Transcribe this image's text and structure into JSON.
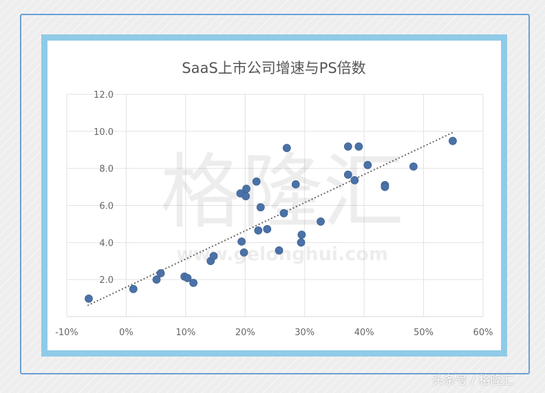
{
  "chart_data": {
    "type": "scatter",
    "title": "SaaS上市公司增速与PS倍数",
    "xlabel": "",
    "ylabel": "",
    "xlim": [
      -10,
      60
    ],
    "ylim": [
      0,
      12
    ],
    "x_ticks": [
      "-10%",
      "0%",
      "10%",
      "20%",
      "30%",
      "40%",
      "50%",
      "60%"
    ],
    "x_tick_values": [
      -10,
      0,
      10,
      20,
      30,
      40,
      50,
      60
    ],
    "y_ticks": [
      "2.0",
      "4.0",
      "6.0",
      "8.0",
      "10.0",
      "12.0"
    ],
    "y_tick_values": [
      2,
      4,
      6,
      8,
      10,
      12
    ],
    "grid": true,
    "marker_color": "#4a72a8",
    "trendline": {
      "style": "dotted",
      "color": "#666666",
      "x": [
        -6.5,
        55
      ],
      "y": [
        0.6,
        9.95
      ]
    },
    "points": [
      {
        "x": -6.3,
        "y": 0.97
      },
      {
        "x": 1.2,
        "y": 1.49
      },
      {
        "x": 5.1,
        "y": 2.0
      },
      {
        "x": 5.8,
        "y": 2.34
      },
      {
        "x": 9.8,
        "y": 2.16
      },
      {
        "x": 10.3,
        "y": 2.08
      },
      {
        "x": 11.3,
        "y": 1.82
      },
      {
        "x": 14.2,
        "y": 3.0
      },
      {
        "x": 14.7,
        "y": 3.27
      },
      {
        "x": 19.2,
        "y": 6.65
      },
      {
        "x": 20.2,
        "y": 6.9
      },
      {
        "x": 20.1,
        "y": 6.5
      },
      {
        "x": 21.9,
        "y": 7.29
      },
      {
        "x": 22.6,
        "y": 5.9
      },
      {
        "x": 22.2,
        "y": 4.65
      },
      {
        "x": 23.7,
        "y": 4.72
      },
      {
        "x": 19.4,
        "y": 4.05
      },
      {
        "x": 19.8,
        "y": 3.46
      },
      {
        "x": 25.7,
        "y": 3.57
      },
      {
        "x": 26.5,
        "y": 5.58
      },
      {
        "x": 27.0,
        "y": 9.1
      },
      {
        "x": 28.5,
        "y": 7.14
      },
      {
        "x": 29.5,
        "y": 4.42
      },
      {
        "x": 29.4,
        "y": 4.0
      },
      {
        "x": 32.7,
        "y": 5.13
      },
      {
        "x": 37.3,
        "y": 9.18
      },
      {
        "x": 39.1,
        "y": 9.18
      },
      {
        "x": 37.3,
        "y": 7.66
      },
      {
        "x": 38.4,
        "y": 7.36
      },
      {
        "x": 40.6,
        "y": 8.18
      },
      {
        "x": 43.5,
        "y": 7.1
      },
      {
        "x": 43.5,
        "y": 7.0
      },
      {
        "x": 48.3,
        "y": 8.1
      },
      {
        "x": 54.9,
        "y": 9.48
      }
    ]
  },
  "watermark": {
    "main": "格隆汇",
    "url": "www.gelonghui.com"
  },
  "footer": "头条号 / 格隆汇",
  "colors": {
    "frame": "#8fcbe8",
    "outer_border": "#6a9fd6"
  }
}
